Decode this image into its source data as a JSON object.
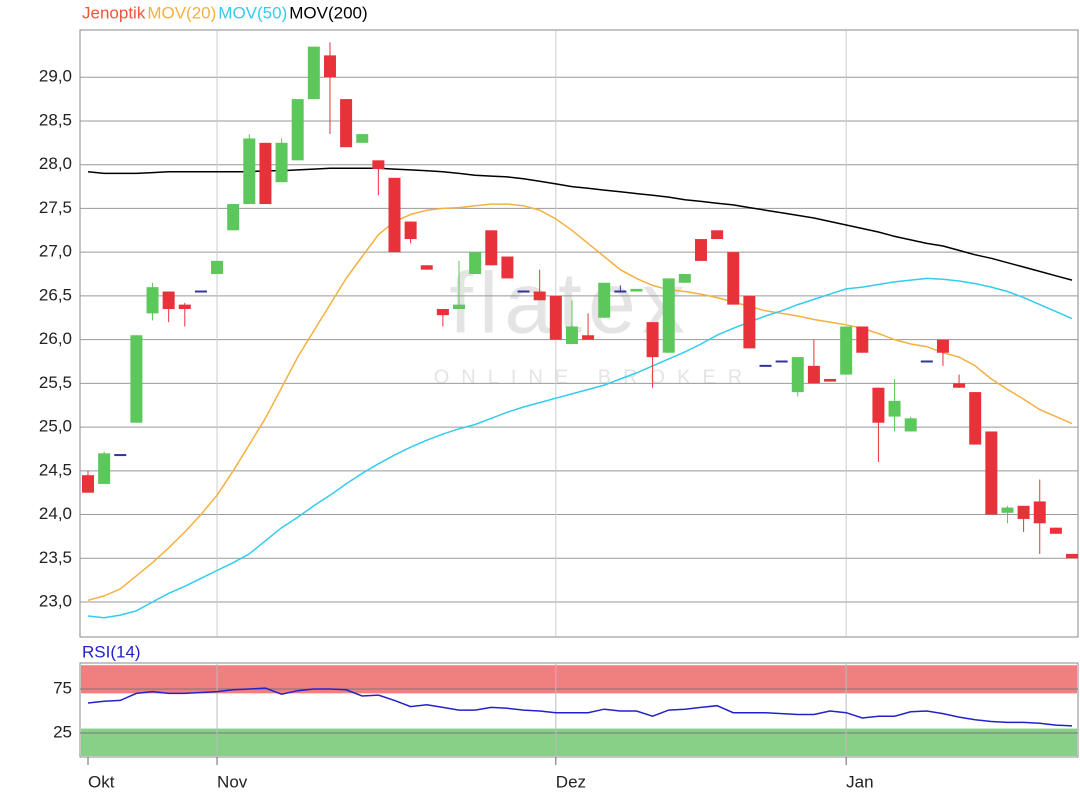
{
  "chart_data": [
    {
      "type": "candlestick",
      "name": "Jenoptik",
      "color": "#f0553a",
      "up_color": "#5cc85c",
      "down_color": "#e8323a",
      "flat_color": "#33339a",
      "categories": [
        "Okt",
        null,
        null,
        null,
        null,
        null,
        null,
        null,
        "Nov",
        null,
        null,
        null,
        null,
        null,
        null,
        null,
        null,
        null,
        null,
        null,
        null,
        null,
        null,
        null,
        null,
        null,
        null,
        null,
        null,
        "Dez",
        null,
        null,
        null,
        null,
        null,
        null,
        null,
        null,
        null,
        null,
        null,
        null,
        null,
        null,
        null,
        null,
        null,
        "Jan",
        null,
        null,
        null,
        null,
        null,
        null,
        null,
        null,
        null,
        null,
        null,
        null,
        null,
        null
      ],
      "open": [
        24.45,
        24.35,
        24.68,
        25.05,
        26.3,
        26.55,
        26.4,
        26.55,
        26.75,
        27.25,
        27.55,
        28.25,
        27.8,
        28.05,
        28.75,
        29.25,
        28.75,
        28.25,
        28.05,
        27.85,
        27.35,
        26.85,
        26.35,
        26.35,
        26.75,
        27.25,
        26.95,
        26.55,
        26.55,
        26.5,
        25.95,
        26.05,
        26.25,
        26.55,
        26.55,
        26.2,
        25.85,
        26.65,
        27.15,
        27.25,
        27.0,
        26.5,
        25.7,
        25.75,
        25.4,
        25.7,
        25.55,
        25.6,
        26.15,
        25.45,
        25.12,
        24.95,
        25.75,
        26.0,
        25.5,
        25.4,
        24.95,
        24.02,
        24.1,
        24.15,
        23.85,
        23.55
      ],
      "high": [
        24.5,
        24.72,
        24.68,
        26.05,
        26.65,
        26.55,
        26.42,
        26.55,
        26.9,
        27.55,
        28.35,
        28.25,
        28.3,
        28.75,
        29.35,
        29.4,
        28.75,
        28.35,
        28.05,
        27.85,
        27.35,
        26.85,
        26.35,
        26.9,
        27.0,
        27.25,
        26.95,
        26.55,
        26.8,
        26.5,
        26.45,
        26.3,
        26.65,
        26.62,
        26.58,
        26.2,
        26.7,
        26.75,
        27.15,
        27.25,
        27.0,
        26.5,
        25.7,
        25.75,
        25.8,
        26.0,
        25.55,
        26.15,
        26.15,
        25.45,
        25.55,
        25.12,
        25.75,
        26.0,
        25.6,
        25.4,
        24.95,
        24.1,
        24.1,
        24.4,
        23.85,
        23.55
      ],
      "low": [
        24.25,
        24.35,
        24.68,
        25.05,
        26.22,
        26.2,
        26.15,
        26.55,
        26.75,
        27.25,
        27.55,
        27.55,
        27.8,
        28.05,
        28.75,
        28.35,
        28.2,
        28.25,
        27.65,
        27.0,
        27.1,
        26.8,
        26.15,
        26.35,
        26.75,
        26.85,
        26.7,
        26.55,
        26.45,
        26.0,
        25.95,
        26.0,
        26.25,
        26.55,
        26.55,
        25.45,
        25.85,
        26.65,
        26.9,
        27.15,
        26.4,
        25.9,
        25.7,
        25.75,
        25.35,
        25.5,
        25.52,
        25.6,
        25.85,
        24.6,
        24.95,
        24.95,
        25.75,
        25.7,
        25.45,
        24.8,
        24.0,
        23.9,
        23.8,
        23.55,
        23.78,
        23.5
      ],
      "close": [
        24.25,
        24.7,
        24.68,
        26.05,
        26.6,
        26.35,
        26.35,
        26.55,
        26.9,
        27.55,
        28.3,
        27.55,
        28.25,
        28.75,
        29.35,
        29.0,
        28.2,
        28.35,
        27.95,
        27.0,
        27.15,
        26.8,
        26.28,
        26.4,
        27.0,
        26.85,
        26.7,
        26.55,
        26.45,
        26.0,
        26.15,
        26.0,
        26.65,
        26.55,
        26.58,
        25.8,
        26.7,
        26.75,
        26.9,
        27.15,
        26.4,
        25.9,
        25.7,
        25.75,
        25.8,
        25.5,
        25.52,
        26.15,
        25.85,
        25.05,
        25.3,
        25.1,
        25.75,
        25.85,
        25.45,
        24.8,
        24.0,
        24.08,
        23.95,
        23.9,
        23.78,
        23.5
      ],
      "series": [
        {
          "name": "MOV(20)",
          "color": "#f5b040",
          "values": [
            23.02,
            23.07,
            23.15,
            23.3,
            23.45,
            23.62,
            23.8,
            24.0,
            24.22,
            24.5,
            24.8,
            25.1,
            25.45,
            25.8,
            26.1,
            26.4,
            26.7,
            26.95,
            27.2,
            27.35,
            27.43,
            27.48,
            27.5,
            27.51,
            27.53,
            27.55,
            27.55,
            27.53,
            27.48,
            27.38,
            27.25,
            27.1,
            26.95,
            26.8,
            26.7,
            26.62,
            26.57,
            26.55,
            26.52,
            26.48,
            26.43,
            26.38,
            26.33,
            26.3,
            26.27,
            26.23,
            26.2,
            26.17,
            26.13,
            26.07,
            26.0,
            25.95,
            25.92,
            25.85,
            25.8,
            25.7,
            25.55,
            25.43,
            25.32,
            25.2,
            25.12,
            25.04
          ]
        },
        {
          "name": "MOV(50)",
          "color": "#33ccee",
          "values": [
            22.84,
            22.82,
            22.85,
            22.9,
            23.0,
            23.1,
            23.18,
            23.27,
            23.36,
            23.45,
            23.55,
            23.7,
            23.85,
            23.97,
            24.1,
            24.22,
            24.35,
            24.47,
            24.58,
            24.68,
            24.77,
            24.85,
            24.92,
            24.98,
            25.03,
            25.1,
            25.17,
            25.23,
            25.28,
            25.33,
            25.38,
            25.43,
            25.48,
            25.55,
            25.62,
            25.7,
            25.78,
            25.86,
            25.95,
            26.05,
            26.13,
            26.2,
            26.27,
            26.33,
            26.4,
            26.46,
            26.52,
            26.58,
            26.6,
            26.63,
            26.66,
            26.68,
            26.7,
            26.69,
            26.67,
            26.64,
            26.6,
            26.55,
            26.48,
            26.4,
            26.32,
            26.24
          ]
        },
        {
          "name": "MOV(200)",
          "color": "#000000",
          "values": [
            27.92,
            27.9,
            27.9,
            27.9,
            27.91,
            27.92,
            27.92,
            27.92,
            27.92,
            27.92,
            27.92,
            27.93,
            27.93,
            27.94,
            27.95,
            27.96,
            27.96,
            27.96,
            27.96,
            27.95,
            27.94,
            27.93,
            27.92,
            27.9,
            27.88,
            27.87,
            27.86,
            27.84,
            27.81,
            27.78,
            27.75,
            27.73,
            27.71,
            27.69,
            27.67,
            27.65,
            27.63,
            27.6,
            27.58,
            27.56,
            27.54,
            27.51,
            27.48,
            27.45,
            27.42,
            27.39,
            27.35,
            27.31,
            27.27,
            27.23,
            27.18,
            27.14,
            27.1,
            27.07,
            27.02,
            26.97,
            26.93,
            26.88,
            26.83,
            26.78,
            26.73,
            26.68
          ]
        }
      ],
      "ylim": [
        22.6,
        29.54
      ],
      "yticks": [
        {
          "value": 23,
          "label": "23,0"
        },
        {
          "value": 23.5,
          "label": "23,5"
        },
        {
          "value": 24,
          "label": "24,0"
        },
        {
          "value": 24.5,
          "label": "24,5"
        },
        {
          "value": 25,
          "label": "25,0"
        },
        {
          "value": 25.5,
          "label": "25,5"
        },
        {
          "value": 26,
          "label": "26,0"
        },
        {
          "value": 26.5,
          "label": "26,5"
        },
        {
          "value": 27,
          "label": "27,0"
        },
        {
          "value": 27.5,
          "label": "27,5"
        },
        {
          "value": 28,
          "label": "28,0"
        },
        {
          "value": 28.5,
          "label": "28,5"
        },
        {
          "value": 29,
          "label": "29,0"
        }
      ],
      "grid": true
    },
    {
      "type": "line",
      "series": [
        {
          "name": "RSI(14)",
          "color": "#2222cc",
          "values": [
            59,
            61,
            62,
            70,
            72,
            70,
            70,
            71,
            72,
            74,
            75,
            76,
            69,
            73,
            75,
            75,
            74,
            67,
            68,
            62,
            55,
            57,
            54,
            51,
            51,
            54,
            53,
            51,
            50,
            48,
            48,
            48,
            52,
            50,
            50,
            44,
            51,
            52,
            54,
            56,
            48,
            48,
            48,
            47,
            46,
            46,
            50,
            48,
            42,
            44,
            44,
            49,
            50,
            47,
            43,
            40,
            38,
            37,
            37,
            36,
            34,
            33
          ]
        }
      ],
      "ylim": [
        -2.3,
        104.5
      ],
      "yticks": [
        25,
        75
      ],
      "bands": [
        {
          "from": 70,
          "to": 102,
          "color": "#f08080"
        },
        {
          "from": -2.3,
          "to": 30,
          "color": "#88d088"
        }
      ],
      "grid": true
    }
  ],
  "watermark": {
    "logo": "flatex",
    "tagline": "ONLINE BROKER"
  }
}
